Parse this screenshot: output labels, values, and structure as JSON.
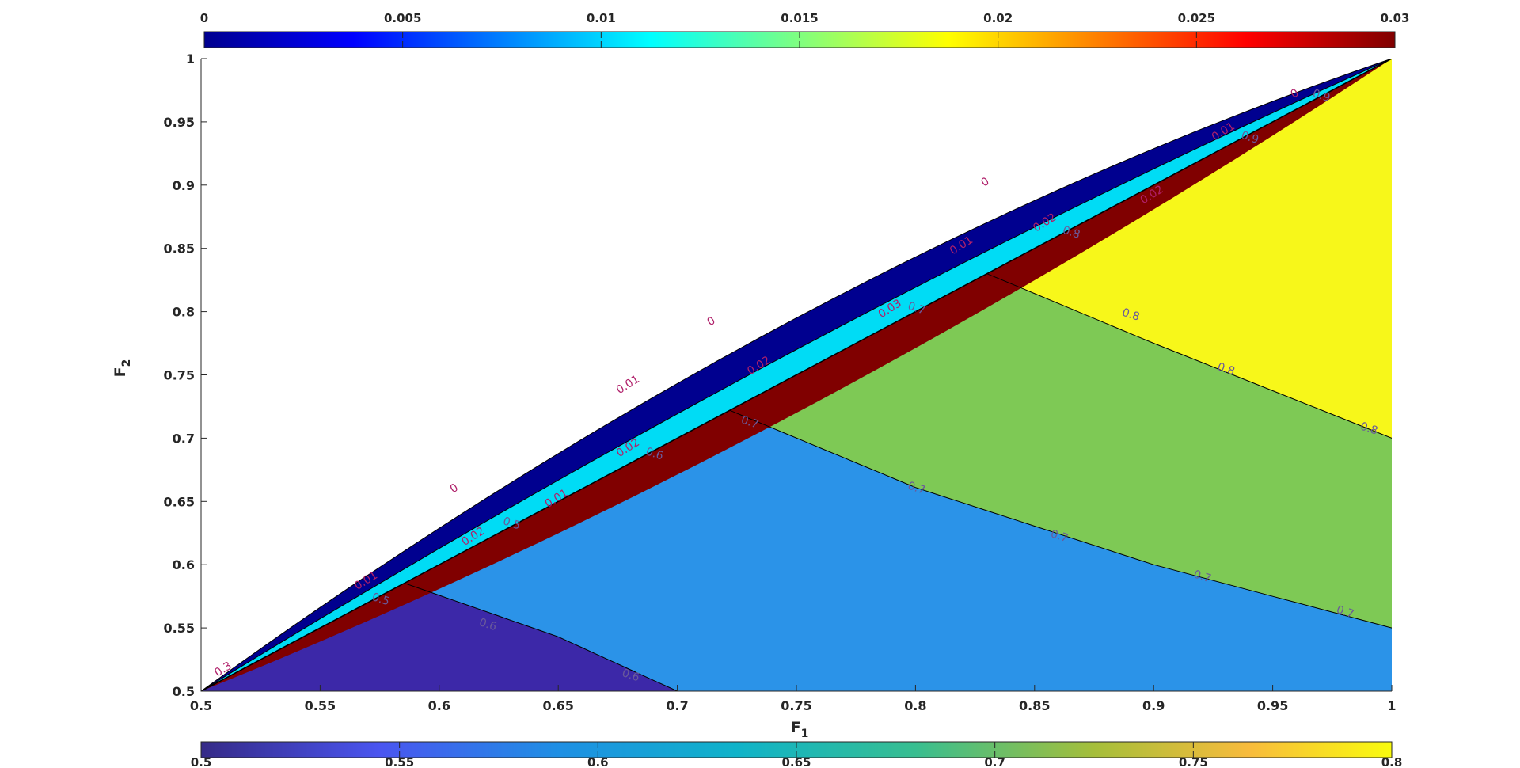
{
  "chart_data": {
    "type": "contour",
    "xlabel": "F",
    "xlabel_sub": "1",
    "ylabel": "F",
    "ylabel_sub": "2",
    "xlim": [
      0.5,
      1
    ],
    "ylim": [
      0.5,
      1
    ],
    "x_ticks": [
      "0.5",
      "0.55",
      "0.6",
      "0.65",
      "0.7",
      "0.75",
      "0.8",
      "0.85",
      "0.9",
      "0.95",
      "1"
    ],
    "y_ticks": [
      "0.5",
      "0.55",
      "0.6",
      "0.65",
      "0.7",
      "0.75",
      "0.8",
      "0.85",
      "0.9",
      "0.95",
      "1"
    ],
    "colorbar_top": {
      "range": [
        0,
        0.03
      ],
      "ticks": [
        "0",
        "0.005",
        "0.01",
        "0.015",
        "0.02",
        "0.025",
        "0.03"
      ],
      "colormap": "jet"
    },
    "colorbar_bottom": {
      "range": [
        0.5,
        0.8
      ],
      "ticks": [
        "0.5",
        "0.55",
        "0.6",
        "0.65",
        "0.7",
        "0.75",
        "0.8"
      ],
      "colormap": "parula"
    },
    "band_fills": [
      {
        "level": 0,
        "color": "#00008f"
      },
      {
        "level": 0.01,
        "color": "#00dcf5"
      },
      {
        "level": 0.02,
        "color": "#ffc300"
      },
      {
        "level": 0.03,
        "color": "#800000"
      }
    ],
    "region_fills": [
      {
        "level": 0.5,
        "color": "#3c28a8"
      },
      {
        "level": 0.6,
        "color": "#2b93e8"
      },
      {
        "level": 0.7,
        "color": "#7ec955"
      },
      {
        "level": 0.8,
        "color": "#f7f71a"
      }
    ],
    "iso_lines": [
      {
        "level": "0.6",
        "points": [
          [
            0.586,
            0.585
          ],
          [
            0.65,
            0.543
          ],
          [
            0.7,
            0.5
          ]
        ]
      },
      {
        "level": "0.7",
        "points": [
          [
            0.722,
            0.722
          ],
          [
            0.8,
            0.661
          ],
          [
            0.9,
            0.6
          ],
          [
            1.0,
            0.55
          ]
        ]
      },
      {
        "level": "0.8",
        "points": [
          [
            0.83,
            0.83
          ],
          [
            0.9,
            0.775
          ],
          [
            1.0,
            0.7
          ]
        ]
      }
    ],
    "contour_labels_band": [
      {
        "text": "0",
        "x": 0.607,
        "y": 0.658
      },
      {
        "text": "0",
        "x": 0.715,
        "y": 0.79
      },
      {
        "text": "0",
        "x": 0.83,
        "y": 0.9
      },
      {
        "text": "0",
        "x": 0.96,
        "y": 0.97
      },
      {
        "text": "0.01",
        "x": 0.68,
        "y": 0.74
      },
      {
        "text": "0.01",
        "x": 0.82,
        "y": 0.85
      },
      {
        "text": "0.01",
        "x": 0.93,
        "y": 0.94
      },
      {
        "text": "0.01",
        "x": 0.57,
        "y": 0.585
      },
      {
        "text": "0.02",
        "x": 0.615,
        "y": 0.62
      },
      {
        "text": "0.02",
        "x": 0.735,
        "y": 0.755
      },
      {
        "text": "0.02",
        "x": 0.855,
        "y": 0.868
      },
      {
        "text": "0.03",
        "x": 0.79,
        "y": 0.8
      },
      {
        "text": "0.02",
        "x": 0.68,
        "y": 0.69
      },
      {
        "text": "0.01",
        "x": 0.65,
        "y": 0.65
      },
      {
        "text": "0.02",
        "x": 0.9,
        "y": 0.89
      },
      {
        "text": "0.3",
        "x": 0.51,
        "y": 0.515
      }
    ],
    "contour_labels_region": [
      {
        "text": "0.6",
        "x": 0.62,
        "y": 0.55
      },
      {
        "text": "0.6",
        "x": 0.68,
        "y": 0.51
      },
      {
        "text": "0.7",
        "x": 0.73,
        "y": 0.71
      },
      {
        "text": "0.7",
        "x": 0.8,
        "y": 0.658
      },
      {
        "text": "0.7",
        "x": 0.86,
        "y": 0.62
      },
      {
        "text": "0.7",
        "x": 0.92,
        "y": 0.588
      },
      {
        "text": "0.7",
        "x": 0.98,
        "y": 0.56
      },
      {
        "text": "0.8",
        "x": 0.89,
        "y": 0.795
      },
      {
        "text": "0.8",
        "x": 0.93,
        "y": 0.752
      },
      {
        "text": "0.8",
        "x": 0.99,
        "y": 0.705
      },
      {
        "text": "0.5",
        "x": 0.63,
        "y": 0.63
      },
      {
        "text": "0.5",
        "x": 0.575,
        "y": 0.57
      },
      {
        "text": "0.6",
        "x": 0.69,
        "y": 0.685
      },
      {
        "text": "0.7",
        "x": 0.8,
        "y": 0.8
      },
      {
        "text": "0.8",
        "x": 0.865,
        "y": 0.86
      },
      {
        "text": "0.9",
        "x": 0.94,
        "y": 0.935
      },
      {
        "text": "0.9",
        "x": 0.97,
        "y": 0.968
      }
    ]
  }
}
